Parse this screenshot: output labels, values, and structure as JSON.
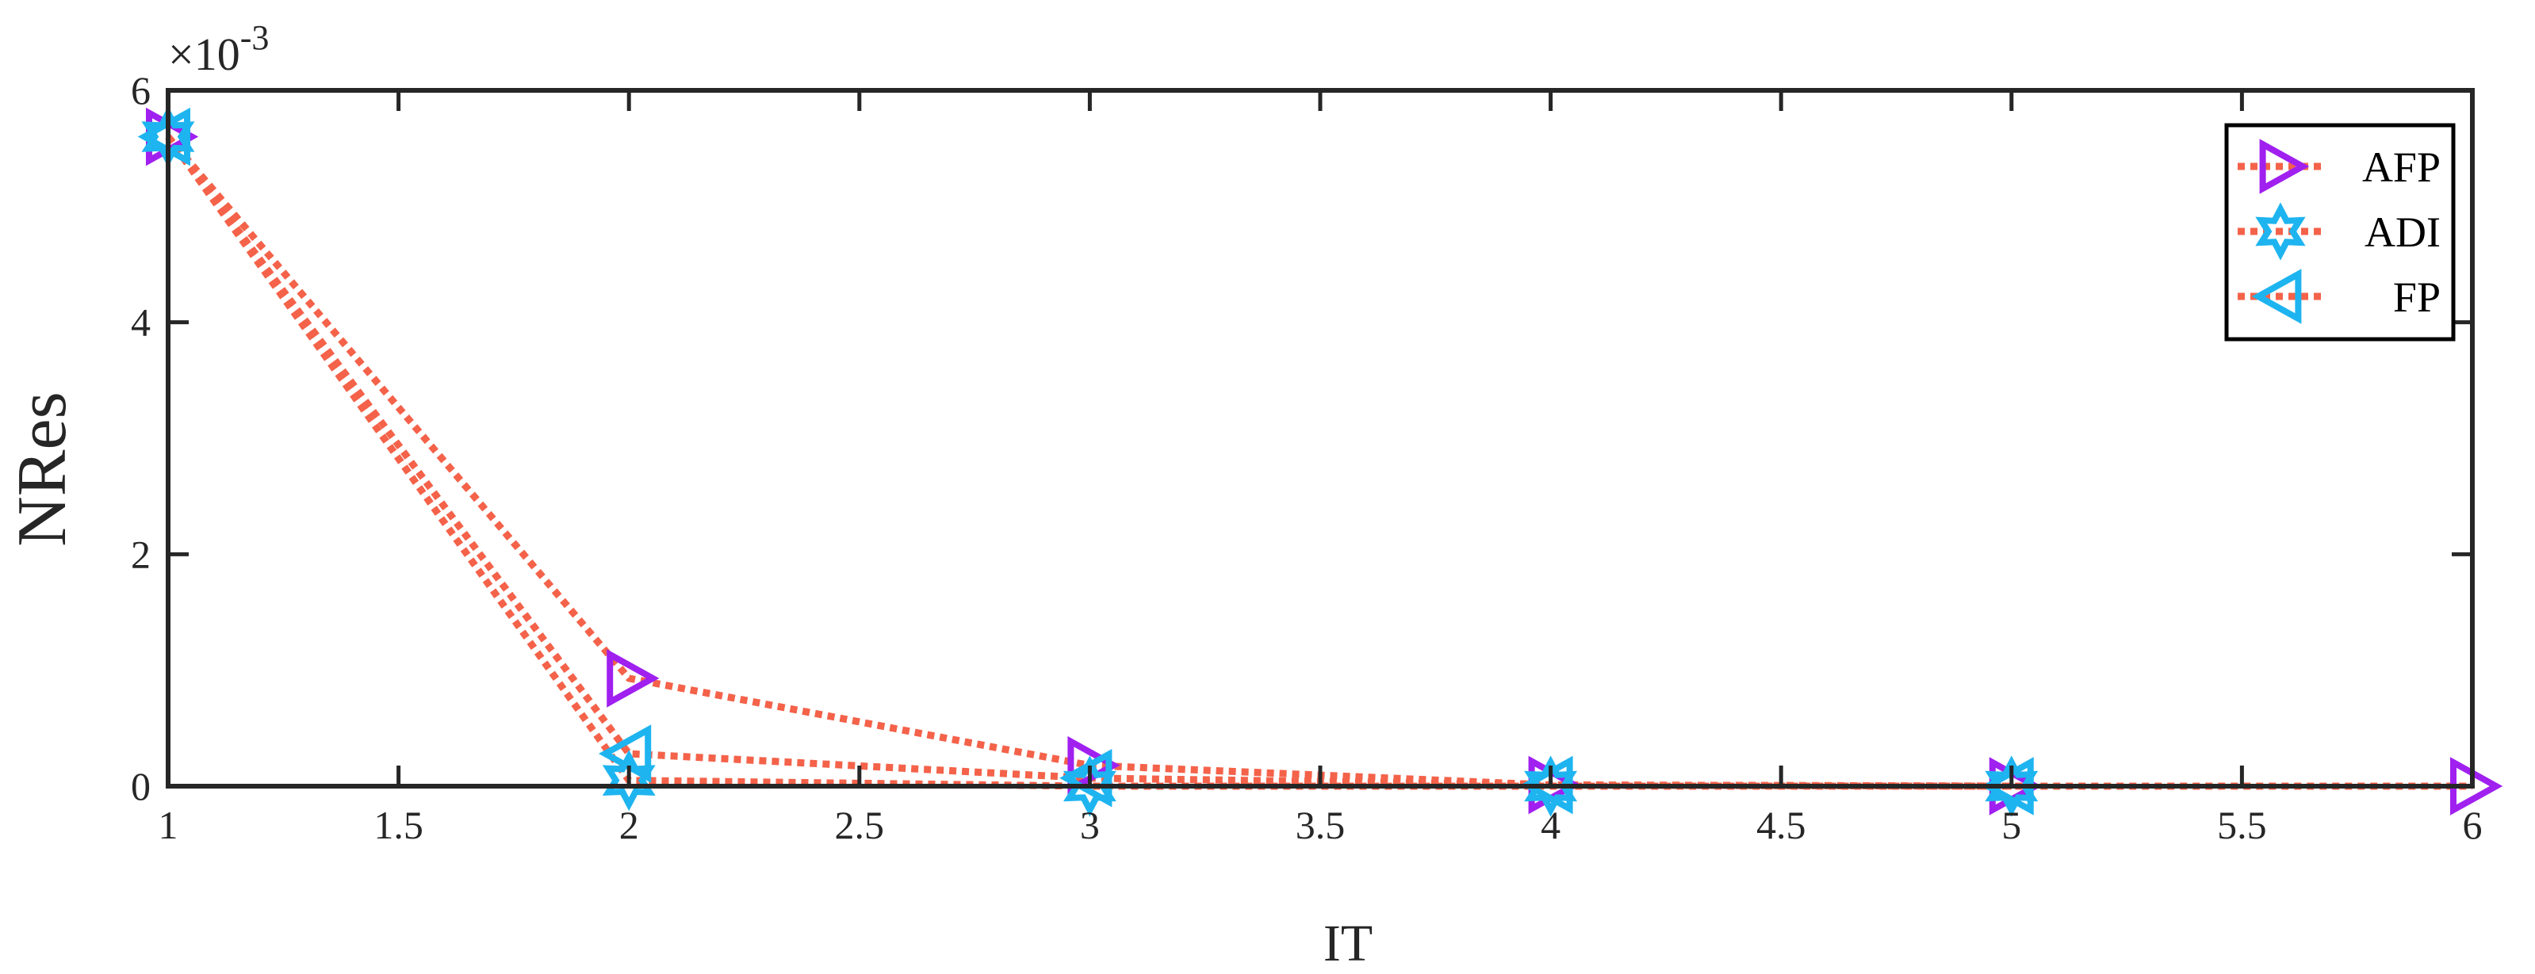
{
  "chart_data": {
    "type": "line",
    "xlabel": "IT",
    "ylabel": "NRes",
    "y_exponent_label": "×10",
    "y_exponent_power": "-3",
    "xlim": [
      1,
      6
    ],
    "ylim": [
      0,
      0.006
    ],
    "x_ticks": [
      1,
      1.5,
      2,
      2.5,
      3,
      3.5,
      4,
      4.5,
      5,
      5.5,
      6
    ],
    "x_tick_labels": [
      "1",
      "1.5",
      "2",
      "2.5",
      "3",
      "3.5",
      "4",
      "4.5",
      "5",
      "5.5",
      "6"
    ],
    "y_ticks": [
      0,
      0.002,
      0.004,
      0.006
    ],
    "y_tick_labels": [
      "0",
      "2",
      "4",
      "6"
    ],
    "grid": false,
    "legend_position": "top-right",
    "line_color": "#F4624A",
    "line_style": "dotted",
    "series": [
      {
        "name": "AFP",
        "marker": "triangle-right",
        "marker_color": "#A020F0",
        "x": [
          1,
          2,
          3,
          4,
          5,
          6
        ],
        "y": [
          0.0056,
          0.00093,
          0.00018,
          1e-05,
          0.0,
          0.0
        ]
      },
      {
        "name": "ADI",
        "marker": "hexagram",
        "marker_color": "#1EB4F0",
        "x": [
          1,
          2,
          3,
          4,
          5
        ],
        "y": [
          0.0056,
          5e-05,
          0.0,
          0.0,
          0.0
        ]
      },
      {
        "name": "FP",
        "marker": "triangle-left",
        "marker_color": "#1EB4F0",
        "x": [
          1,
          2,
          3,
          4,
          5
        ],
        "y": [
          0.0056,
          0.00028,
          7e-05,
          1e-05,
          0.0
        ]
      }
    ]
  }
}
